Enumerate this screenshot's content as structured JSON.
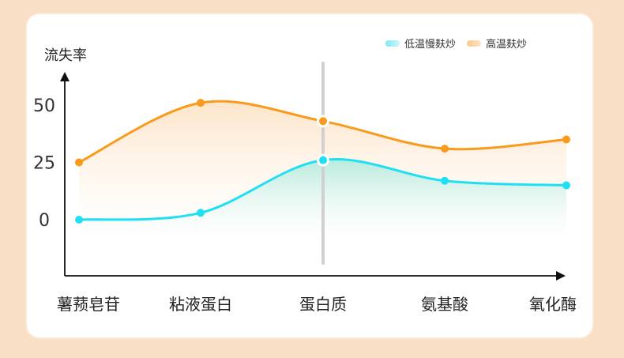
{
  "chart_data": {
    "type": "line",
    "ylabel": "流失率",
    "categories": [
      "薯蓣皂苷",
      "粘液蛋白",
      "蛋白质",
      "氨基酸",
      "氧化酶"
    ],
    "yticks": [
      0,
      25,
      50
    ],
    "series": [
      {
        "name": "低温慢麸炒",
        "values": [
          0,
          3,
          26,
          17,
          15
        ],
        "color": "#1fe0f2"
      },
      {
        "name": "高温麸炒",
        "values": [
          25,
          51,
          43,
          31,
          35
        ],
        "color": "#fa9a1c"
      }
    ],
    "highlight_index": 2
  }
}
